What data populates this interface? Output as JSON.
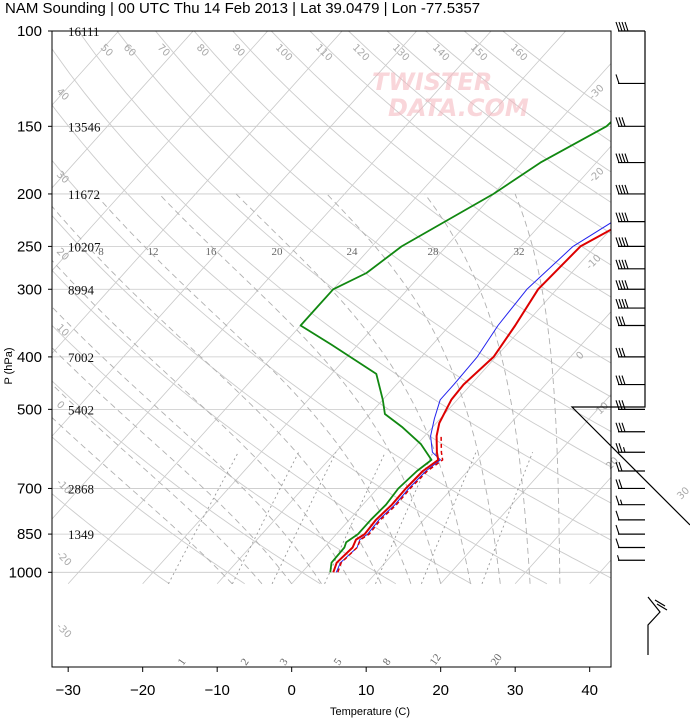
{
  "title": "NAM Sounding | 00 UTC Thu 14 Feb 2013 | Lat 39.0479 | Lon -77.5357",
  "watermark_line1": "TWISTER",
  "watermark_line2": "DATA.COM",
  "colors": {
    "temperature": "#dd0000",
    "dewpoint": "#118811",
    "parcel": "#2222ee",
    "grid": "#c8c8c8",
    "mixing_ratio": "#999999",
    "adiabat": "#cccccc"
  },
  "chart_data": {
    "type": "skew-t",
    "xlabel": "Temperature (C)",
    "ylabel": "P (hPa)",
    "xlim": [
      -34,
      52
    ],
    "ylim": [
      1050,
      100
    ],
    "x_ticks": [
      -30,
      -20,
      -10,
      0,
      10,
      20,
      30,
      40
    ],
    "y_ticks": [
      {
        "p": 100,
        "label": "100",
        "height": "16111"
      },
      {
        "p": 150,
        "label": "150",
        "height": "13546"
      },
      {
        "p": 200,
        "label": "200",
        "height": "11672"
      },
      {
        "p": 250,
        "label": "250",
        "height": "10207"
      },
      {
        "p": 300,
        "label": "300",
        "height": "8994"
      },
      {
        "p": 400,
        "label": "400",
        "height": "7002"
      },
      {
        "p": 500,
        "label": "500",
        "height": "5402"
      },
      {
        "p": 700,
        "label": "700",
        "height": "2868"
      },
      {
        "p": 850,
        "label": "850",
        "height": "1349"
      },
      {
        "p": 1000,
        "label": "1000",
        "height": ""
      }
    ],
    "temperature_profile": [
      {
        "p": 1000,
        "t": 4.2
      },
      {
        "p": 960,
        "t": 3.5
      },
      {
        "p": 900,
        "t": 3.8
      },
      {
        "p": 870,
        "t": 3.3
      },
      {
        "p": 850,
        "t": 3.8
      },
      {
        "p": 800,
        "t": 3.6
      },
      {
        "p": 750,
        "t": 3.9
      },
      {
        "p": 700,
        "t": 3.8
      },
      {
        "p": 650,
        "t": 4.0
      },
      {
        "p": 620,
        "t": 4.7
      },
      {
        "p": 600,
        "t": 3.6
      },
      {
        "p": 560,
        "t": 1.6
      },
      {
        "p": 530,
        "t": 0.4
      },
      {
        "p": 480,
        "t": -0.8
      },
      {
        "p": 450,
        "t": -1.0
      },
      {
        "p": 400,
        "t": -0.3
      },
      {
        "p": 350,
        "t": -1.2
      },
      {
        "p": 300,
        "t": -2.5
      },
      {
        "p": 250,
        "t": -2.0
      },
      {
        "p": 200,
        "t": 4.5
      },
      {
        "p": 175,
        "t": 7.5
      },
      {
        "p": 150,
        "t": 8.5
      },
      {
        "p": 125,
        "t": 11.0
      },
      {
        "p": 100,
        "t": 15.5
      }
    ],
    "dewpoint_profile": [
      {
        "p": 1000,
        "td": 3.8
      },
      {
        "p": 960,
        "td": 2.8
      },
      {
        "p": 900,
        "td": 2.7
      },
      {
        "p": 880,
        "td": 2.3
      },
      {
        "p": 850,
        "td": 2.9
      },
      {
        "p": 800,
        "td": 2.9
      },
      {
        "p": 750,
        "td": 3.1
      },
      {
        "p": 700,
        "td": 2.8
      },
      {
        "p": 650,
        "td": 3.2
      },
      {
        "p": 620,
        "td": 3.8
      },
      {
        "p": 580,
        "td": 0.5
      },
      {
        "p": 540,
        "td": -4.0
      },
      {
        "p": 510,
        "td": -8.0
      },
      {
        "p": 480,
        "td": -10.0
      },
      {
        "p": 430,
        "td": -14.0
      },
      {
        "p": 380,
        "td": -23.5
      },
      {
        "p": 350,
        "td": -30.0
      },
      {
        "p": 320,
        "td": -30.0
      },
      {
        "p": 300,
        "td": -30.0
      },
      {
        "p": 280,
        "td": -27.5
      },
      {
        "p": 250,
        "td": -26.0
      },
      {
        "p": 200,
        "td": -20.0
      },
      {
        "p": 175,
        "td": -17.5
      },
      {
        "p": 150,
        "td": -13.0
      },
      {
        "p": 125,
        "td": -12.0
      },
      {
        "p": 100,
        "td": -8.5
      }
    ],
    "parcel_profile": [
      {
        "p": 1000,
        "t": 4.6
      },
      {
        "p": 960,
        "t": 4.0
      },
      {
        "p": 900,
        "t": 4.4
      },
      {
        "p": 870,
        "t": 3.8
      },
      {
        "p": 850,
        "t": 4.2
      },
      {
        "p": 800,
        "t": 4.0
      },
      {
        "p": 750,
        "t": 4.3
      },
      {
        "p": 700,
        "t": 4.2
      },
      {
        "p": 650,
        "t": 4.4
      },
      {
        "p": 620,
        "t": 5.0
      },
      {
        "p": 600,
        "t": 3.0
      },
      {
        "p": 560,
        "t": 0.8
      },
      {
        "p": 520,
        "t": -0.8
      },
      {
        "p": 480,
        "t": -2.3
      },
      {
        "p": 450,
        "t": -2.3
      },
      {
        "p": 400,
        "t": -2.5
      },
      {
        "p": 350,
        "t": -3.5
      },
      {
        "p": 300,
        "t": -4.0
      },
      {
        "p": 250,
        "t": -3.0
      },
      {
        "p": 200,
        "t": 2.0
      },
      {
        "p": 175,
        "t": 5.5
      },
      {
        "p": 150,
        "t": 7.0
      },
      {
        "p": 125,
        "t": 9.0
      },
      {
        "p": 100,
        "t": 13.5
      }
    ],
    "isotherm_labels": [
      {
        "t": -20,
        "label": "-20"
      },
      {
        "t": -10,
        "label": "-10"
      },
      {
        "t": 0,
        "label": "0"
      },
      {
        "t": 10,
        "label": "10"
      },
      {
        "t": 20,
        "label": "20"
      },
      {
        "t": 30,
        "label": "30"
      }
    ],
    "theta_labels": [
      "0",
      "10",
      "20",
      "30",
      "40",
      "50",
      "60",
      "70",
      "80",
      "90",
      "100",
      "110",
      "120",
      "130",
      "140",
      "150",
      "160"
    ],
    "mixing_ratio_values": [
      1,
      2,
      3,
      5,
      8,
      12,
      20
    ],
    "mixing_ratio_labels": [
      "1",
      "2",
      "3",
      "5",
      "8",
      "12",
      "20"
    ],
    "theta_e_labels": [
      "8",
      "12",
      "16",
      "20",
      "24",
      "28",
      "32"
    ],
    "wind_barbs": [
      {
        "p": 100,
        "flags": 0,
        "full": 4,
        "half": 0
      },
      {
        "p": 125,
        "flags": 0,
        "full": 1,
        "half": 0
      },
      {
        "p": 150,
        "flags": 0,
        "full": 3,
        "half": 0
      },
      {
        "p": 175,
        "flags": 0,
        "full": 4,
        "half": 0
      },
      {
        "p": 200,
        "flags": 0,
        "full": 4,
        "half": 0
      },
      {
        "p": 225,
        "flags": 0,
        "full": 4,
        "half": 0
      },
      {
        "p": 250,
        "flags": 0,
        "full": 4,
        "half": 0
      },
      {
        "p": 275,
        "flags": 0,
        "full": 4,
        "half": 0
      },
      {
        "p": 300,
        "flags": 0,
        "full": 4,
        "half": 0
      },
      {
        "p": 325,
        "flags": 0,
        "full": 4,
        "half": 0
      },
      {
        "p": 350,
        "flags": 0,
        "full": 3,
        "half": 0
      },
      {
        "p": 400,
        "flags": 0,
        "full": 3,
        "half": 0
      },
      {
        "p": 450,
        "flags": 0,
        "full": 3,
        "half": 0
      },
      {
        "p": 500,
        "flags": 0,
        "full": 3,
        "half": 0
      },
      {
        "p": 550,
        "flags": 0,
        "full": 3,
        "half": 0
      },
      {
        "p": 600,
        "flags": 0,
        "full": 2,
        "half": 1
      },
      {
        "p": 650,
        "flags": 0,
        "full": 2,
        "half": 0
      },
      {
        "p": 700,
        "flags": 0,
        "full": 2,
        "half": 0
      },
      {
        "p": 750,
        "flags": 0,
        "full": 1,
        "half": 1
      },
      {
        "p": 800,
        "flags": 0,
        "full": 1,
        "half": 0
      },
      {
        "p": 850,
        "flags": 0,
        "full": 1,
        "half": 0
      },
      {
        "p": 900,
        "flags": 0,
        "full": 1,
        "half": 0
      },
      {
        "p": 950,
        "flags": 0,
        "full": 0,
        "half": 1
      }
    ]
  }
}
